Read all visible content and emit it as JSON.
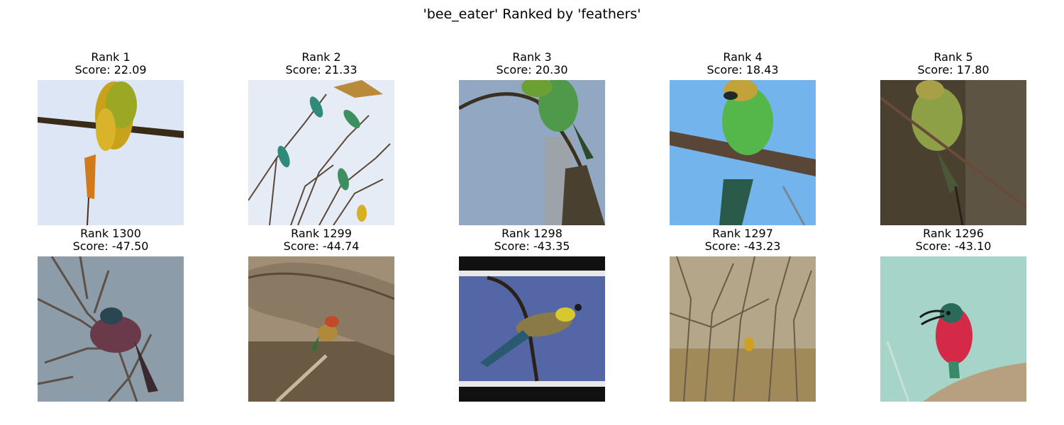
{
  "figure": {
    "title": "'bee_eater' Ranked by 'feathers'"
  },
  "top_row": [
    {
      "rank": "Rank 1",
      "score": "Score: 22.09",
      "image": "bee-eater-yellow-on-branch"
    },
    {
      "rank": "Rank 2",
      "score": "Score: 21.33",
      "image": "flock-of-bee-eaters-on-twigs"
    },
    {
      "rank": "Rank 3",
      "score": "Score: 20.30",
      "image": "bee-eater-closeup-on-stem"
    },
    {
      "rank": "Rank 4",
      "score": "Score: 18.43",
      "image": "green-bee-eater-on-branch"
    },
    {
      "rank": "Rank 5",
      "score": "Score: 17.80",
      "image": "bee-eater-on-diagonal-twig"
    }
  ],
  "bottom_row": [
    {
      "rank": "Rank 1300",
      "score": "Score: -47.50",
      "image": "carmine-bee-eater-in-bare-branches"
    },
    {
      "rank": "Rank 1299",
      "score": "Score: -44.74",
      "image": "bee-eater-near-fallen-log"
    },
    {
      "rank": "Rank 1298",
      "score": "Score: -43.35",
      "image": "bee-eater-with-insect-letterboxed"
    },
    {
      "rank": "Rank 1297",
      "score": "Score: -43.23",
      "image": "bee-eater-in-dry-brush"
    },
    {
      "rank": "Rank 1296",
      "score": "Score: -43.10",
      "image": "carmine-bee-eater-on-rock"
    }
  ]
}
